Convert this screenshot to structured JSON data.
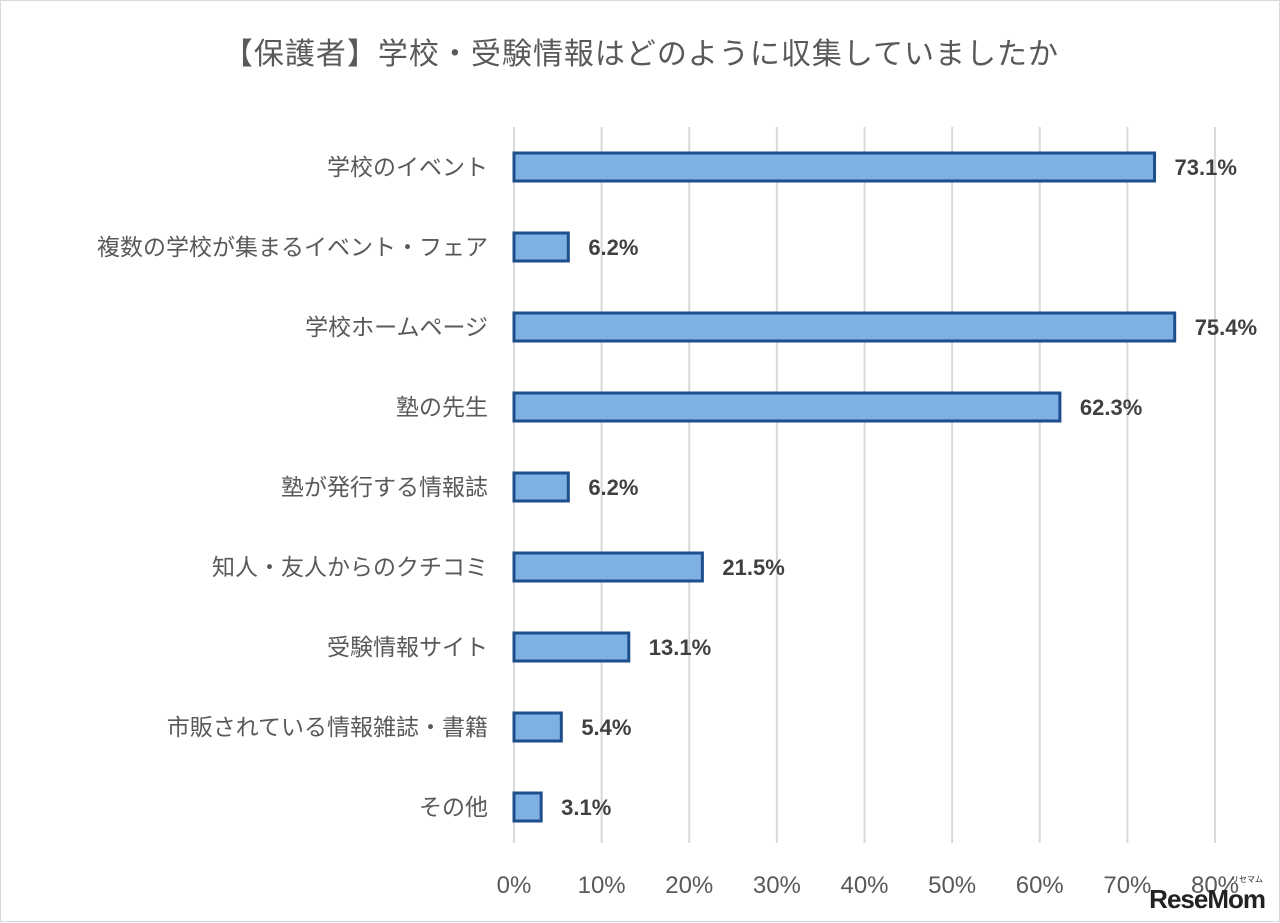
{
  "watermark": {
    "text": "ReseMom",
    "ruby": "リセマム"
  },
  "chart_data": {
    "type": "bar",
    "orientation": "horizontal",
    "title": "【保護者】学校・受験情報はどのように収集していましたか",
    "categories": [
      "学校のイベント",
      "複数の学校が集まるイベント・フェア",
      "学校ホームページ",
      "塾の先生",
      "塾が発行する情報誌",
      "知人・友人からのクチコミ",
      "受験情報サイト",
      "市販されている情報雑誌・書籍",
      "その他"
    ],
    "values": [
      73.1,
      6.2,
      75.4,
      62.3,
      6.2,
      21.5,
      13.1,
      5.4,
      3.1
    ],
    "value_labels": [
      "73.1%",
      "6.2%",
      "75.4%",
      "62.3%",
      "6.2%",
      "21.5%",
      "13.1%",
      "5.4%",
      "3.1%"
    ],
    "xlim": [
      0,
      80
    ],
    "xticks": [
      0,
      10,
      20,
      30,
      40,
      50,
      60,
      70,
      80
    ],
    "xtick_labels": [
      "0%",
      "10%",
      "20%",
      "30%",
      "40%",
      "50%",
      "60%",
      "70%",
      "80%"
    ],
    "grid": true,
    "legend": "none",
    "colors": {
      "bar_fill": "#7fb0e3",
      "bar_edge": "#1f4e8c",
      "grid": "#d9d9d9",
      "text": "#595959"
    }
  }
}
